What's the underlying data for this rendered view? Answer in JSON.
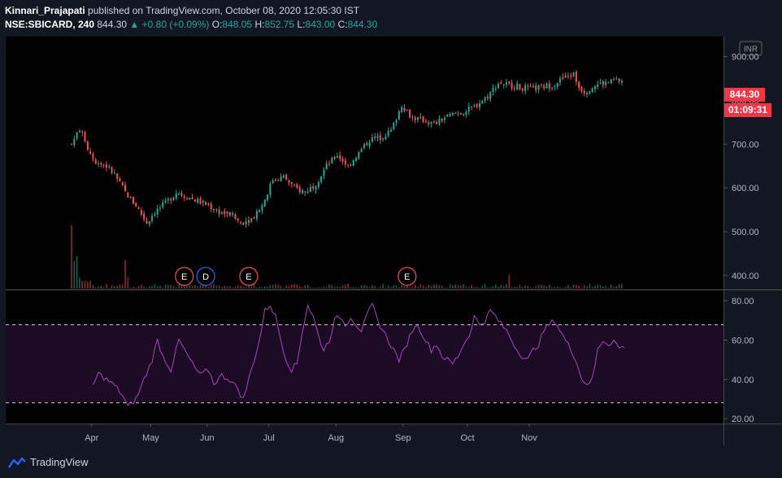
{
  "header": {
    "author": "Kinnari_Prajapati",
    "published": "published on TradingView.com, October 08, 2020 12:05:30 IST",
    "symbol": "NSE:SBICARD, 240",
    "last": "844.30",
    "change": "+0.80 (+0.09%)",
    "o_label": "O:",
    "o_value": "848.05",
    "h_label": "H:",
    "h_value": "852.75",
    "l_label": "L:",
    "l_value": "843.00",
    "c_label": "C:",
    "c_value": "844.30"
  },
  "currency": "INR",
  "price_badge": "844.30",
  "countdown_badge": "01:09:31",
  "footer": {
    "brand": "TradingView"
  },
  "colors": {
    "up": "#26a69a",
    "down": "#ef5350",
    "rsi": "#ab47bc",
    "badge": "#f23645",
    "dividend": "#2962ff"
  },
  "chart_data": {
    "type": "candlestick",
    "title": "NSE:SBICARD, 240",
    "ylim": [
      370,
      940
    ],
    "price_ticks": [
      "900.00",
      "800.00",
      "700.00",
      "600.00",
      "500.00",
      "400.00"
    ],
    "x_ticks": [
      "Apr",
      "May",
      "Jun",
      "Jul",
      "Aug",
      "Sep",
      "Oct",
      "Nov"
    ],
    "close_anchors": [
      [
        0,
        700
      ],
      [
        3,
        735
      ],
      [
        6,
        690
      ],
      [
        9,
        660
      ],
      [
        13,
        650
      ],
      [
        16,
        630
      ],
      [
        20,
        590
      ],
      [
        24,
        560
      ],
      [
        28,
        520
      ],
      [
        31,
        545
      ],
      [
        35,
        565
      ],
      [
        39,
        590
      ],
      [
        43,
        580
      ],
      [
        47,
        570
      ],
      [
        51,
        560
      ],
      [
        55,
        545
      ],
      [
        59,
        540
      ],
      [
        63,
        520
      ],
      [
        67,
        530
      ],
      [
        71,
        560
      ],
      [
        75,
        620
      ],
      [
        79,
        625
      ],
      [
        83,
        600
      ],
      [
        87,
        590
      ],
      [
        91,
        610
      ],
      [
        95,
        650
      ],
      [
        99,
        675
      ],
      [
        103,
        650
      ],
      [
        107,
        680
      ],
      [
        111,
        710
      ],
      [
        115,
        715
      ],
      [
        119,
        730
      ],
      [
        123,
        790
      ],
      [
        127,
        760
      ],
      [
        131,
        755
      ],
      [
        135,
        745
      ],
      [
        139,
        760
      ],
      [
        143,
        770
      ],
      [
        147,
        775
      ],
      [
        151,
        790
      ],
      [
        155,
        810
      ],
      [
        159,
        840
      ],
      [
        163,
        835
      ],
      [
        167,
        830
      ],
      [
        171,
        825
      ],
      [
        175,
        830
      ],
      [
        179,
        835
      ],
      [
        183,
        850
      ],
      [
        187,
        860
      ],
      [
        189,
        830
      ],
      [
        191,
        820
      ],
      [
        195,
        835
      ],
      [
        199,
        840
      ],
      [
        203,
        845
      ],
      [
        205,
        844.3
      ]
    ],
    "event_markers": [
      {
        "label": "E",
        "kind": "earnings",
        "bar": 42
      },
      {
        "label": "D",
        "kind": "dividend",
        "bar": 50
      },
      {
        "label": "E",
        "kind": "earnings",
        "bar": 66
      },
      {
        "label": "E",
        "kind": "earnings",
        "bar": 125
      }
    ],
    "rsi": {
      "ylim": [
        18,
        85
      ],
      "ticks": [
        "80.00",
        "60.00",
        "40.00",
        "20.00"
      ],
      "upper": 70,
      "lower": 30,
      "anchors": [
        [
          0,
          37
        ],
        [
          2,
          43
        ],
        [
          5,
          40
        ],
        [
          8,
          37
        ],
        [
          11,
          32
        ],
        [
          13,
          26
        ],
        [
          16,
          30
        ],
        [
          19,
          40
        ],
        [
          22,
          50
        ],
        [
          24,
          60
        ],
        [
          26,
          52
        ],
        [
          29,
          45
        ],
        [
          32,
          60
        ],
        [
          34,
          55
        ],
        [
          37,
          48
        ],
        [
          40,
          42
        ],
        [
          43,
          45
        ],
        [
          45,
          38
        ],
        [
          48,
          42
        ],
        [
          51,
          40
        ],
        [
          54,
          35
        ],
        [
          56,
          30
        ],
        [
          59,
          45
        ],
        [
          62,
          60
        ],
        [
          64,
          75
        ],
        [
          66,
          78
        ],
        [
          68,
          72
        ],
        [
          70,
          60
        ],
        [
          72,
          50
        ],
        [
          74,
          45
        ],
        [
          76,
          48
        ],
        [
          78,
          65
        ],
        [
          80,
          78
        ],
        [
          82,
          72
        ],
        [
          84,
          62
        ],
        [
          86,
          55
        ],
        [
          88,
          60
        ],
        [
          90,
          70
        ],
        [
          92,
          72
        ],
        [
          94,
          68
        ],
        [
          96,
          72
        ],
        [
          98,
          68
        ],
        [
          100,
          65
        ],
        [
          102,
          72
        ],
        [
          104,
          78
        ],
        [
          106,
          70
        ],
        [
          108,
          65
        ],
        [
          110,
          60
        ],
        [
          112,
          55
        ],
        [
          114,
          50
        ],
        [
          116,
          55
        ],
        [
          118,
          62
        ],
        [
          120,
          68
        ],
        [
          122,
          65
        ],
        [
          124,
          60
        ],
        [
          126,
          55
        ],
        [
          128,
          58
        ],
        [
          130,
          52
        ],
        [
          132,
          50
        ],
        [
          134,
          48
        ],
        [
          136,
          52
        ],
        [
          138,
          58
        ],
        [
          140,
          62
        ],
        [
          142,
          72
        ],
        [
          144,
          68
        ],
        [
          146,
          70
        ],
        [
          148,
          75
        ],
        [
          150,
          72
        ],
        [
          152,
          68
        ],
        [
          154,
          65
        ],
        [
          156,
          60
        ],
        [
          158,
          55
        ],
        [
          160,
          52
        ],
        [
          162,
          50
        ],
        [
          164,
          55
        ],
        [
          166,
          58
        ],
        [
          168,
          65
        ],
        [
          170,
          68
        ],
        [
          172,
          70
        ],
        [
          174,
          65
        ],
        [
          176,
          60
        ],
        [
          178,
          55
        ],
        [
          180,
          50
        ],
        [
          182,
          40
        ],
        [
          184,
          38
        ],
        [
          186,
          40
        ],
        [
          188,
          55
        ],
        [
          190,
          60
        ],
        [
          192,
          58
        ],
        [
          194,
          60
        ],
        [
          196,
          56
        ],
        [
          198,
          57
        ]
      ]
    }
  }
}
